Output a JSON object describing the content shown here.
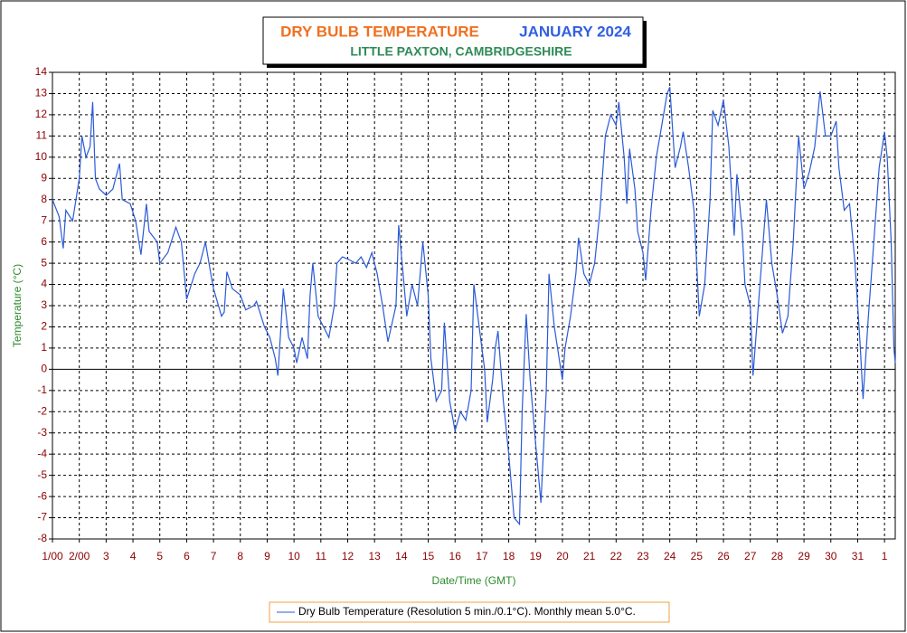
{
  "chart_data": {
    "type": "line",
    "title": "DRY BULB TEMPERATURE",
    "period": "JANUARY 2024",
    "subtitle": "LITTLE PAXTON, CAMBRIDGESHIRE",
    "x_label": "Date/Time (GMT)",
    "y_label": "Temperature (°C)",
    "xlim": [
      1,
      32.4
    ],
    "ylim": [
      -8,
      14
    ],
    "yticks": [
      -8,
      -7,
      -6,
      -5,
      -4,
      -3,
      -2,
      -1,
      0,
      1,
      2,
      3,
      4,
      5,
      6,
      7,
      8,
      9,
      10,
      11,
      12,
      13,
      14
    ],
    "xticks": [
      {
        "value": 1,
        "label": "1/00"
      },
      {
        "value": 2,
        "label": "2/00"
      },
      3,
      4,
      5,
      6,
      7,
      8,
      9,
      10,
      11,
      12,
      13,
      14,
      15,
      16,
      17,
      18,
      19,
      20,
      21,
      22,
      23,
      24,
      25,
      26,
      27,
      28,
      29,
      30,
      31,
      {
        "value": 32,
        "label": "1"
      }
    ],
    "grid": true,
    "x": [
      1.0,
      1.25,
      1.4,
      1.5,
      1.75,
      2.0,
      2.1,
      2.25,
      2.4,
      2.5,
      2.6,
      2.75,
      3.0,
      3.25,
      3.5,
      3.6,
      3.9,
      4.1,
      4.3,
      4.5,
      4.6,
      4.9,
      5.0,
      5.3,
      5.6,
      5.8,
      6.0,
      6.3,
      6.5,
      6.7,
      6.9,
      7.0,
      7.3,
      7.4,
      7.5,
      7.7,
      8.0,
      8.2,
      8.5,
      8.6,
      8.9,
      9.1,
      9.3,
      9.4,
      9.6,
      9.8,
      10.0,
      10.1,
      10.3,
      10.5,
      10.6,
      10.7,
      10.9,
      11.1,
      11.3,
      11.5,
      11.6,
      11.8,
      12.0,
      12.3,
      12.5,
      12.7,
      12.9,
      13.1,
      13.3,
      13.5,
      13.8,
      13.9,
      14.1,
      14.2,
      14.4,
      14.6,
      14.8,
      15.0,
      15.1,
      15.3,
      15.5,
      15.6,
      15.8,
      16.0,
      16.2,
      16.4,
      16.6,
      16.7,
      16.9,
      17.1,
      17.2,
      17.4,
      17.5,
      17.6,
      17.8,
      18.0,
      18.2,
      18.4,
      18.5,
      18.65,
      18.8,
      19.0,
      19.2,
      19.4,
      19.5,
      19.7,
      20.0,
      20.1,
      20.3,
      20.5,
      20.6,
      20.8,
      21.0,
      21.2,
      21.4,
      21.6,
      21.8,
      22.0,
      22.1,
      22.3,
      22.4,
      22.5,
      22.7,
      22.8,
      23.0,
      23.1,
      23.3,
      23.5,
      23.7,
      23.9,
      24.0,
      24.2,
      24.4,
      24.5,
      24.7,
      24.9,
      25.0,
      25.1,
      25.3,
      25.5,
      25.6,
      25.8,
      26.0,
      26.2,
      26.4,
      26.5,
      26.7,
      26.8,
      27.0,
      27.1,
      27.3,
      27.6,
      27.8,
      28.0,
      28.2,
      28.4,
      28.6,
      28.8,
      29.0,
      29.2,
      29.4,
      29.6,
      29.8,
      30.0,
      30.2,
      30.3,
      30.5,
      30.7,
      30.9,
      31.1,
      31.2,
      31.4,
      31.6,
      31.8,
      32.0,
      32.1,
      32.25,
      32.35,
      32.4
    ],
    "series": [
      {
        "name": "Dry Bulb Temperature (Resolution 5 min./0.1°C). Monthly mean 5.0°C.",
        "color": "#2a5ad8",
        "values": [
          8,
          7.2,
          5.7,
          7.5,
          7.0,
          9,
          11,
          10,
          10.5,
          12.6,
          9,
          8.5,
          8.2,
          8.5,
          9.7,
          8,
          7.8,
          7,
          5.4,
          7.8,
          6.5,
          6,
          5,
          5.5,
          6.7,
          6,
          3.3,
          4.5,
          5,
          6,
          4.5,
          3.8,
          2.5,
          2.7,
          4.6,
          3.8,
          3.5,
          2.8,
          3.0,
          3.2,
          2.0,
          1.5,
          0.5,
          -0.3,
          3.8,
          1.5,
          1.0,
          0.3,
          1.5,
          0.5,
          3.5,
          5.0,
          2.5,
          2.0,
          1.5,
          3.0,
          5.0,
          5.3,
          5.2,
          5.0,
          5.3,
          4.8,
          5.5,
          4.5,
          3.0,
          1.3,
          3.0,
          6.8,
          4.0,
          2.5,
          4.0,
          3.0,
          6.0,
          3.5,
          0.5,
          -1.5,
          -1.0,
          2.2,
          -1.5,
          -2.9,
          -2.0,
          -2.4,
          -1.0,
          4.0,
          2.0,
          0.0,
          -2.5,
          -0.5,
          1.0,
          1.8,
          -1.5,
          -4.0,
          -7.0,
          -7.3,
          -2,
          2.6,
          -0.5,
          -3.5,
          -6.3,
          -1.0,
          4.5,
          2.0,
          -0.5,
          1.0,
          2.5,
          4.5,
          6.2,
          4.5,
          4.0,
          5.0,
          7.5,
          11,
          12,
          11.5,
          12.6,
          10,
          7.8,
          10.4,
          8.5,
          6.5,
          5.5,
          4.2,
          7.5,
          10,
          11.5,
          13.0,
          13.3,
          9.5,
          10.5,
          11.2,
          9.5,
          7.5,
          5,
          2.5,
          4.0,
          8,
          12.2,
          11.5,
          12.7,
          10.5,
          6.3,
          9.2,
          6.5,
          4.0,
          3.0,
          -0.3,
          3.0,
          8.0,
          5.0,
          3.5,
          1.7,
          2.5,
          6,
          11,
          8.5,
          9.3,
          10.5,
          13.1,
          11,
          11,
          11.7,
          9.5,
          7.5,
          7.8,
          5.0,
          1.0,
          -1.4,
          2.5,
          6,
          9.5,
          11.2,
          10,
          6,
          1.0,
          0.3
        ]
      }
    ]
  }
}
